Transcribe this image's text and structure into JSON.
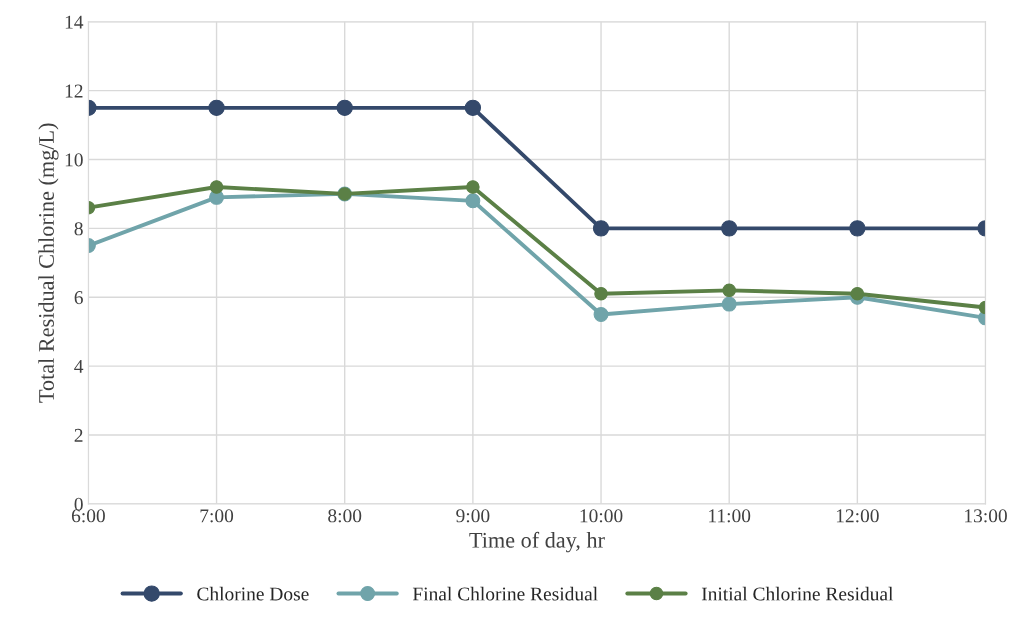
{
  "chart_data": {
    "type": "line",
    "xlabel": "Time of day, hr",
    "ylabel": "Total Residual Chlorine (mg/L)",
    "x": [
      6,
      7,
      8,
      9,
      10,
      11,
      12,
      13
    ],
    "series": [
      {
        "name": "Chlorine Dose",
        "color": "#34496b",
        "values": [
          11.5,
          11.5,
          11.5,
          11.5,
          8,
          8,
          8,
          8
        ]
      },
      {
        "name": "Final Chlorine Residual",
        "color": "#70a4aa",
        "values": [
          7.5,
          8.9,
          9.0,
          8.8,
          5.5,
          5.8,
          6.0,
          5.4
        ]
      },
      {
        "name": "Initial Chlorine Residual",
        "color": "#5b8046",
        "values": [
          8.6,
          9.2,
          9.0,
          9.2,
          6.1,
          6.2,
          6.1,
          5.7
        ]
      }
    ],
    "xlim": [
      6,
      13
    ],
    "xticks": [
      {
        "value": 6,
        "label": "6:00"
      },
      {
        "value": 7,
        "label": "7:00"
      },
      {
        "value": 8,
        "label": "8:00"
      },
      {
        "value": 9,
        "label": "9:00"
      },
      {
        "value": 10,
        "label": "10:00"
      },
      {
        "value": 11,
        "label": "11:00"
      },
      {
        "value": 12,
        "label": "12:00"
      },
      {
        "value": 13,
        "label": "13:00"
      }
    ],
    "ylim": [
      0,
      14
    ],
    "yticks": [
      0,
      2,
      4,
      6,
      8,
      10,
      12,
      14
    ],
    "grid": true,
    "legend": "bottom",
    "marker": "circle",
    "line_style": "solid"
  }
}
